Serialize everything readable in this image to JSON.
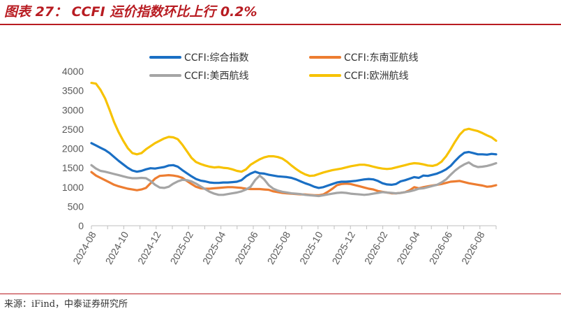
{
  "header": {
    "title": "图表 27： CCFI 运价指数环比上行 0.2%"
  },
  "footer": {
    "source": "来源：iFind，中泰证券研究所"
  },
  "chart_data": {
    "type": "line",
    "ylim": [
      0,
      4000
    ],
    "yticks": [
      "0",
      "500",
      "1000",
      "1500",
      "2000",
      "2500",
      "3000",
      "3500",
      "4000"
    ],
    "xticks": [
      "2024-08",
      "2024-10",
      "2024-12",
      "2025-02",
      "2025-04",
      "2025-06",
      "2025-08",
      "2025-10",
      "2025-12",
      "2026-02",
      "2026-04",
      "2026-06",
      "2026-08"
    ],
    "x_range": [
      "2024-08",
      "2026-09"
    ],
    "series": [
      {
        "name": "CCFI:综合指数",
        "color": "#1a6fc4",
        "values": [
          2140,
          2080,
          2020,
          1960,
          1880,
          1780,
          1680,
          1590,
          1500,
          1430,
          1400,
          1420,
          1460,
          1490,
          1480,
          1500,
          1520,
          1560,
          1570,
          1530,
          1440,
          1360,
          1280,
          1210,
          1170,
          1150,
          1120,
          1110,
          1110,
          1120,
          1120,
          1130,
          1140,
          1180,
          1280,
          1350,
          1400,
          1360,
          1350,
          1320,
          1300,
          1280,
          1270,
          1260,
          1240,
          1200,
          1150,
          1100,
          1060,
          1010,
          980,
          1000,
          1040,
          1080,
          1120,
          1140,
          1140,
          1150,
          1160,
          1180,
          1200,
          1210,
          1200,
          1160,
          1100,
          1070,
          1060,
          1080,
          1150,
          1180,
          1220,
          1260,
          1240,
          1300,
          1290,
          1320,
          1350,
          1400,
          1460,
          1550,
          1680,
          1800,
          1890,
          1910,
          1880,
          1850,
          1850,
          1840,
          1860,
          1850
        ]
      },
      {
        "name": "CCFI:东南亚航线",
        "color": "#ed7d31",
        "values": [
          1390,
          1300,
          1240,
          1180,
          1120,
          1060,
          1020,
          990,
          960,
          940,
          920,
          940,
          980,
          1100,
          1220,
          1290,
          1300,
          1310,
          1300,
          1280,
          1240,
          1160,
          1080,
          1010,
          970,
          960,
          960,
          970,
          980,
          990,
          1000,
          1000,
          990,
          980,
          960,
          950,
          950,
          950,
          940,
          930,
          890,
          870,
          850,
          840,
          830,
          820,
          810,
          810,
          800,
          790,
          790,
          810,
          880,
          960,
          1050,
          1080,
          1090,
          1080,
          1050,
          1020,
          990,
          960,
          940,
          900,
          880,
          860,
          840,
          840,
          850,
          870,
          920,
          1000,
          970,
          1000,
          1020,
          1040,
          1060,
          1080,
          1110,
          1140,
          1150,
          1160,
          1130,
          1100,
          1080,
          1060,
          1040,
          1010,
          1020,
          1050
        ]
      },
      {
        "name": "CCFI:美西航线",
        "color": "#a5a5a5",
        "values": [
          1570,
          1480,
          1420,
          1400,
          1370,
          1340,
          1310,
          1280,
          1250,
          1230,
          1230,
          1240,
          1230,
          1160,
          1060,
          990,
          980,
          1010,
          1090,
          1150,
          1190,
          1180,
          1150,
          1090,
          1020,
          950,
          880,
          830,
          800,
          800,
          820,
          840,
          860,
          890,
          940,
          1010,
          1180,
          1300,
          1200,
          1050,
          960,
          910,
          880,
          860,
          840,
          830,
          820,
          800,
          790,
          780,
          770,
          790,
          810,
          830,
          850,
          860,
          850,
          830,
          820,
          810,
          800,
          810,
          830,
          850,
          870,
          860,
          850,
          840,
          850,
          870,
          890,
          920,
          960,
          970,
          1000,
          1030,
          1060,
          1120,
          1200,
          1320,
          1430,
          1520,
          1590,
          1640,
          1560,
          1520,
          1530,
          1550,
          1580,
          1620
        ]
      },
      {
        "name": "CCFI:欧洲航线",
        "color": "#f7c200",
        "values": [
          3700,
          3680,
          3520,
          3300,
          3000,
          2680,
          2420,
          2200,
          2010,
          1880,
          1850,
          1880,
          1980,
          2060,
          2140,
          2200,
          2260,
          2300,
          2290,
          2240,
          2100,
          1930,
          1760,
          1650,
          1600,
          1560,
          1530,
          1510,
          1520,
          1500,
          1490,
          1460,
          1420,
          1400,
          1460,
          1580,
          1650,
          1720,
          1770,
          1800,
          1800,
          1780,
          1740,
          1660,
          1560,
          1470,
          1390,
          1330,
          1290,
          1300,
          1340,
          1380,
          1410,
          1440,
          1460,
          1480,
          1510,
          1540,
          1560,
          1580,
          1580,
          1560,
          1530,
          1500,
          1480,
          1470,
          1480,
          1510,
          1540,
          1570,
          1600,
          1620,
          1610,
          1590,
          1560,
          1550,
          1580,
          1660,
          1800,
          1980,
          2180,
          2360,
          2480,
          2510,
          2480,
          2450,
          2400,
          2340,
          2290,
          2200
        ]
      }
    ]
  }
}
